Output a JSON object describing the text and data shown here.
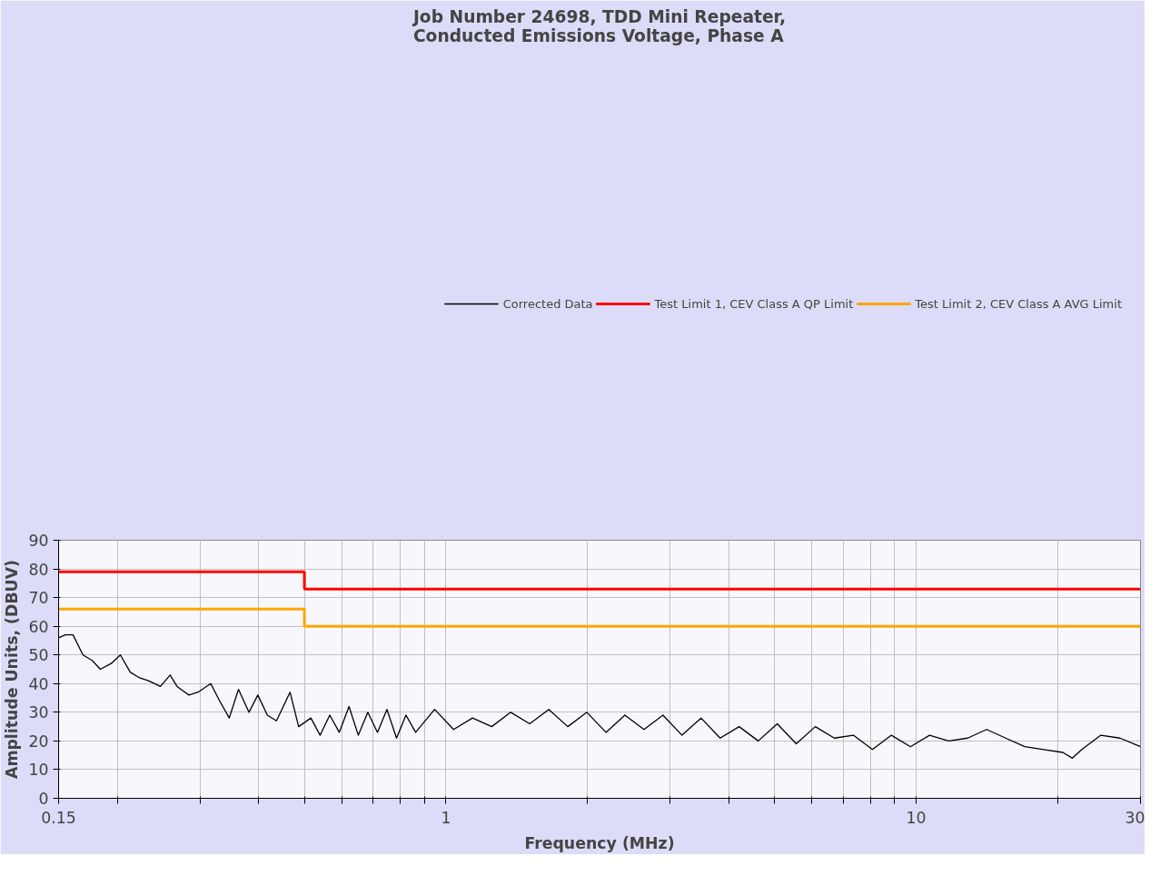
{
  "chart_data": {
    "type": "line",
    "title": "Job Number 24698, TDD Mini Repeater,\nConducted Emissions Voltage, Phase A",
    "xlabel": "Frequency (MHz)",
    "ylabel": "Amplitude Units, (DBUV)",
    "log": "x",
    "xlim": [
      0.15,
      30
    ],
    "ylim": [
      0,
      90
    ],
    "xticks": [
      0.15,
      {
        "value": 0.2,
        "label": null
      },
      {
        "value": 0.3,
        "label": null
      },
      {
        "value": 0.4,
        "label": null
      },
      {
        "value": 0.5,
        "label": null
      },
      {
        "value": 0.6,
        "label": null
      },
      {
        "value": 0.7,
        "label": null
      },
      {
        "value": 0.8,
        "label": null
      },
      {
        "value": 0.9,
        "label": null
      },
      1,
      {
        "value": 2,
        "label": null
      },
      {
        "value": 3,
        "label": null
      },
      {
        "value": 4,
        "label": null
      },
      {
        "value": 5,
        "label": null
      },
      {
        "value": 6,
        "label": null
      },
      {
        "value": 7,
        "label": null
      },
      {
        "value": 8,
        "label": null
      },
      {
        "value": 9,
        "label": null
      },
      10,
      {
        "value": 20,
        "label": null
      },
      30
    ],
    "yticks": [
      0,
      10,
      20,
      30,
      40,
      50,
      60,
      70,
      80,
      90
    ],
    "grid": true,
    "legend": "top",
    "marker": "none",
    "line_style": "solid",
    "series": [
      {
        "name": "Corrected Data",
        "color": "#000000",
        "x": [
          0.15,
          0.155,
          0.161,
          0.169,
          0.177,
          0.184,
          0.194,
          0.203,
          0.213,
          0.223,
          0.233,
          0.247,
          0.259,
          0.268,
          0.284,
          0.297,
          0.316,
          0.33,
          0.346,
          0.362,
          0.381,
          0.398,
          0.417,
          0.436,
          0.466,
          0.486,
          0.516,
          0.54,
          0.566,
          0.593,
          0.622,
          0.651,
          0.682,
          0.715,
          0.749,
          0.785,
          0.822,
          0.862,
          0.946,
          1.038,
          1.139,
          1.251,
          1.373,
          1.507,
          1.655,
          1.816,
          1.994,
          2.189,
          2.402,
          2.637,
          2.894,
          3.177,
          3.488,
          3.829,
          4.203,
          4.614,
          5.065,
          5.559,
          6.102,
          6.699,
          7.353,
          8.072,
          8.861,
          9.726,
          10.68,
          11.72,
          12.87,
          14.12,
          15.5,
          17.02,
          18.68,
          20.51,
          21.49,
          22.51,
          24.71,
          27.13,
          30
        ],
        "values": [
          56,
          57,
          57,
          50,
          48,
          45,
          47,
          50,
          44,
          42,
          41,
          39,
          43,
          39,
          36,
          37,
          40,
          34,
          28,
          38,
          30,
          36,
          29,
          27,
          37,
          25,
          28,
          22,
          29,
          23,
          32,
          22,
          30,
          23,
          31,
          21,
          29,
          23,
          31,
          24,
          28,
          25,
          30,
          26,
          31,
          25,
          30,
          23,
          29,
          24,
          29,
          22,
          28,
          21,
          25,
          20,
          26,
          19,
          25,
          21,
          22,
          17,
          22,
          18,
          22,
          20,
          21,
          24,
          21,
          18,
          17,
          16,
          14,
          17,
          22,
          21,
          18
        ]
      },
      {
        "name": "Test Limit 1, CEV Class A QP Limit",
        "color": "#ff0000",
        "type": "step",
        "x": [
          0.15,
          0.5,
          30
        ],
        "values": [
          79,
          73,
          73
        ]
      },
      {
        "name": "Test Limit 2, CEV Class A AVG Limit",
        "color": "#ffa500",
        "type": "step",
        "x": [
          0.15,
          0.5,
          30
        ],
        "values": [
          66,
          60,
          60
        ]
      }
    ]
  }
}
